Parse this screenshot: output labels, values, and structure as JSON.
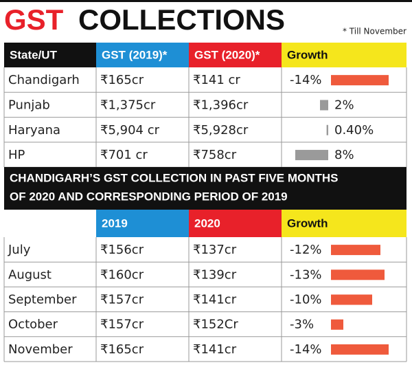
{
  "header": {
    "title_part1": "GST",
    "title_part2": "COLLECTIONS",
    "note": "* Till November"
  },
  "table1": {
    "columns": [
      "State/UT",
      "GST (2019)*",
      "GST (2020)*",
      "Growth"
    ],
    "rows": [
      {
        "name": "Chandigarh",
        "gst_2019": "₹165cr",
        "gst_2020": "₹141 cr",
        "growth": {
          "value": -14,
          "label": "-14%"
        }
      },
      {
        "name": "Punjab",
        "gst_2019": "₹1,375cr",
        "gst_2020": "₹1,396cr",
        "growth": {
          "value": 2,
          "label": "2%"
        }
      },
      {
        "name": "Haryana",
        "gst_2019": "₹5,904 cr",
        "gst_2020": "₹5,928cr",
        "growth": {
          "value": 0.4,
          "label": "0.40%"
        }
      },
      {
        "name": "HP",
        "gst_2019": "₹701 cr",
        "gst_2020": "₹758cr",
        "growth": {
          "value": 8,
          "label": "8%"
        }
      }
    ]
  },
  "section_title": [
    "CHANDIGARH’S GST COLLECTION IN PAST FIVE MONTHS",
    "OF 2020 AND CORRESPONDING PERIOD OF 2019"
  ],
  "table2": {
    "columns": [
      "2019",
      "2020",
      "Growth"
    ],
    "rows": [
      {
        "name": "July",
        "gst_2019": "₹156cr",
        "gst_2020": "₹137cr",
        "growth": {
          "value": -12,
          "label": "-12%"
        }
      },
      {
        "name": "August",
        "gst_2019": "₹160cr",
        "gst_2020": "₹139cr",
        "growth": {
          "value": -13,
          "label": "-13%"
        }
      },
      {
        "name": "September",
        "gst_2019": "₹157cr",
        "gst_2020": "₹141cr",
        "growth": {
          "value": -10,
          "label": "-10%"
        }
      },
      {
        "name": "October",
        "gst_2019": "₹157cr",
        "gst_2020": "₹152Cr",
        "growth": {
          "value": -3,
          "label": "-3%"
        }
      },
      {
        "name": "November",
        "gst_2019": "₹165cr",
        "gst_2020": "₹141cr",
        "growth": {
          "value": -14,
          "label": "-14%"
        }
      }
    ]
  }
}
